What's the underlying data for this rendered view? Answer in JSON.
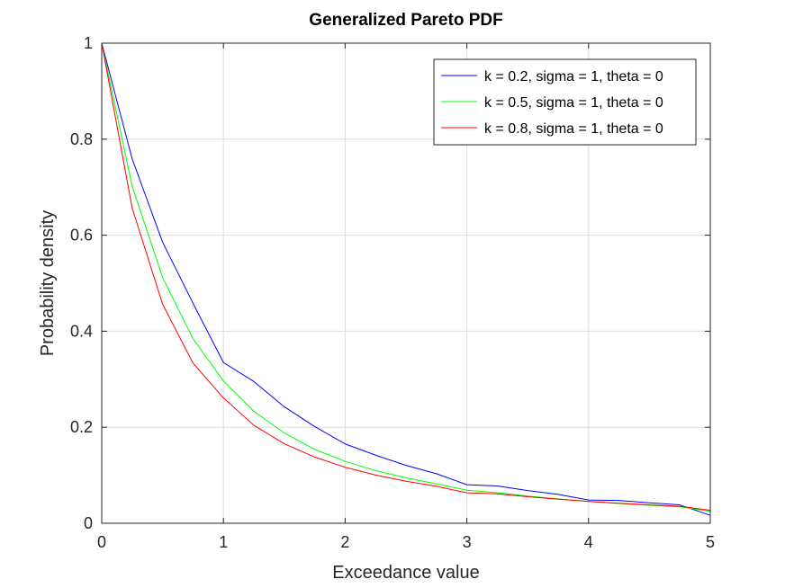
{
  "chart_data": {
    "type": "line",
    "title": "Generalized Pareto PDF",
    "xlabel": "Exceedance value",
    "ylabel": "Probability density",
    "xlim": [
      0,
      5
    ],
    "ylim": [
      0,
      1
    ],
    "xticks": [
      0,
      1,
      2,
      3,
      4,
      5
    ],
    "yticks": [
      0,
      0.2,
      0.4,
      0.6,
      0.8,
      1
    ],
    "xtick_labels": [
      "0",
      "1",
      "2",
      "3",
      "4",
      "5"
    ],
    "ytick_labels": [
      "0",
      "0.2",
      "0.4",
      "0.6",
      "0.8",
      "1"
    ],
    "grid": true,
    "legend_position": "top-right",
    "x": [
      0,
      0.25,
      0.5,
      0.75,
      1,
      1.25,
      1.5,
      1.75,
      2,
      2.25,
      2.5,
      2.75,
      3,
      3.25,
      3.5,
      3.75,
      4,
      4.25,
      4.5,
      4.75,
      5
    ],
    "series": [
      {
        "name": "k = 0.2, sigma = 1, theta = 0",
        "color": "#0000ff",
        "values": [
          1,
          0.7591,
          0.5856,
          0.4582,
          0.3349,
          0.2952,
          0.2426,
          0.2015,
          0.1652,
          0.1418,
          0.1205,
          0.1032,
          0.0803,
          0.0777,
          0.0681,
          0.0601,
          0.0485,
          0.0475,
          0.0426,
          0.0383,
          0.0165
        ]
      },
      {
        "name": "k = 0.5, sigma = 1, theta = 0",
        "color": "#00ff00",
        "values": [
          1,
          0.7023,
          0.512,
          0.3845,
          0.2963,
          0.2332,
          0.188,
          0.1538,
          0.1291,
          0.1097,
          0.0945,
          0.0822,
          0.0688,
          0.0636,
          0.0566,
          0.0507,
          0.0456,
          0.0412,
          0.0374,
          0.0341,
          0.0249
        ]
      },
      {
        "name": "k = 0.8, sigma = 1, theta = 0",
        "color": "#ff0000",
        "values": [
          1,
          0.6566,
          0.4565,
          0.3334,
          0.2612,
          0.204,
          0.1656,
          0.1378,
          0.1166,
          0.1004,
          0.0875,
          0.077,
          0.0634,
          0.0614,
          0.0552,
          0.05,
          0.0455,
          0.0417,
          0.0383,
          0.0353,
          0.0269
        ]
      }
    ]
  }
}
